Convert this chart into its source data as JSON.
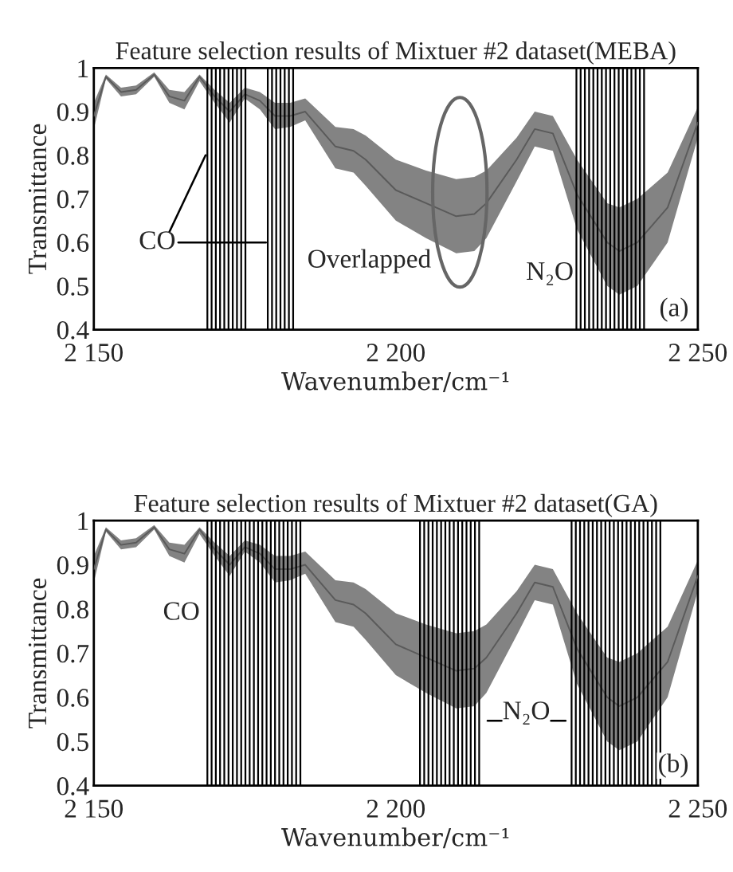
{
  "chart_data": [
    {
      "type": "line",
      "title": "Feature selection results of Mixtuer #2 dataset(MEBA)",
      "xlabel": "Wavenumber/cm⁻¹",
      "ylabel": "Transmittance",
      "xlim": [
        2150,
        2250
      ],
      "ylim": [
        0.4,
        1
      ],
      "xticks": [
        {
          "value": 2150,
          "label": "2 150"
        },
        {
          "value": 2200,
          "label": "2 200"
        },
        {
          "value": 2250,
          "label": "2 250"
        }
      ],
      "yticks": [
        0.4,
        0.5,
        0.6,
        0.7,
        0.8,
        0.9,
        1
      ],
      "series": [
        {
          "color": "#5a5a5a",
          "x": [
            2150,
            2152,
            2154.5,
            2157,
            2160,
            2162.5,
            2165,
            2167.5,
            2170,
            2172.5,
            2175,
            2177.5,
            2180,
            2182.5,
            2185,
            2190,
            2193,
            2195,
            2200,
            2205,
            2210,
            2213,
            2215,
            2220,
            2223,
            2226,
            2230,
            2235,
            2237,
            2240,
            2245,
            2250
          ],
          "values": [
            0.89,
            0.98,
            0.945,
            0.95,
            0.985,
            0.935,
            0.925,
            0.98,
            0.935,
            0.9,
            0.94,
            0.925,
            0.89,
            0.89,
            0.9,
            0.82,
            0.81,
            0.79,
            0.72,
            0.69,
            0.66,
            0.665,
            0.69,
            0.79,
            0.86,
            0.85,
            0.71,
            0.6,
            0.58,
            0.6,
            0.68,
            0.875
          ],
          "lower": [
            0.86,
            0.975,
            0.935,
            0.94,
            0.98,
            0.92,
            0.905,
            0.97,
            0.92,
            0.875,
            0.93,
            0.905,
            0.86,
            0.865,
            0.88,
            0.77,
            0.76,
            0.73,
            0.65,
            0.61,
            0.575,
            0.58,
            0.61,
            0.74,
            0.82,
            0.81,
            0.63,
            0.5,
            0.48,
            0.5,
            0.6,
            0.84
          ],
          "upper": [
            0.92,
            0.985,
            0.955,
            0.96,
            0.99,
            0.95,
            0.945,
            0.985,
            0.95,
            0.92,
            0.955,
            0.945,
            0.92,
            0.92,
            0.93,
            0.865,
            0.86,
            0.845,
            0.79,
            0.765,
            0.745,
            0.75,
            0.765,
            0.84,
            0.9,
            0.89,
            0.79,
            0.69,
            0.68,
            0.7,
            0.76,
            0.91
          ]
        }
      ],
      "ref_lines": [
        {
          "axis": "x",
          "value": 2168.8
        },
        {
          "axis": "x",
          "value": 2169.5
        },
        {
          "axis": "x",
          "value": 2170.2
        },
        {
          "axis": "x",
          "value": 2170.9
        },
        {
          "axis": "x",
          "value": 2171.6
        },
        {
          "axis": "x",
          "value": 2172.3
        },
        {
          "axis": "x",
          "value": 2173.0
        },
        {
          "axis": "x",
          "value": 2173.7
        },
        {
          "axis": "x",
          "value": 2174.4
        },
        {
          "axis": "x",
          "value": 2175.1
        },
        {
          "axis": "x",
          "value": 2178.8
        },
        {
          "axis": "x",
          "value": 2179.5
        },
        {
          "axis": "x",
          "value": 2180.2
        },
        {
          "axis": "x",
          "value": 2180.9
        },
        {
          "axis": "x",
          "value": 2181.6
        },
        {
          "axis": "x",
          "value": 2182.3
        },
        {
          "axis": "x",
          "value": 2183.0
        },
        {
          "axis": "x",
          "value": 2229.9
        },
        {
          "axis": "x",
          "value": 2230.6
        },
        {
          "axis": "x",
          "value": 2231.3
        },
        {
          "axis": "x",
          "value": 2232.0
        },
        {
          "axis": "x",
          "value": 2232.7
        },
        {
          "axis": "x",
          "value": 2233.4
        },
        {
          "axis": "x",
          "value": 2234.1
        },
        {
          "axis": "x",
          "value": 2234.8
        },
        {
          "axis": "x",
          "value": 2235.5
        },
        {
          "axis": "x",
          "value": 2236.2
        },
        {
          "axis": "x",
          "value": 2236.9
        },
        {
          "axis": "x",
          "value": 2237.6
        },
        {
          "axis": "x",
          "value": 2238.3
        },
        {
          "axis": "x",
          "value": 2239.0
        },
        {
          "axis": "x",
          "value": 2239.7
        },
        {
          "axis": "x",
          "value": 2240.4
        },
        {
          "axis": "x",
          "value": 2241.1
        }
      ],
      "annotations": [
        {
          "text": "CO",
          "x": 2168.5,
          "y": 0.8
        },
        "Overlapped",
        "N₂O",
        "(a)"
      ]
    },
    {
      "type": "line",
      "title": "Feature selection results of Mixtuer #2 dataset(GA)",
      "xlabel": "Wavenumber/cm⁻¹",
      "ylabel": "Transmittance",
      "xlim": [
        2150,
        2250
      ],
      "ylim": [
        0.4,
        1
      ],
      "xticks": [
        {
          "value": 2150,
          "label": "2 150"
        },
        {
          "value": 2200,
          "label": "2 200"
        },
        {
          "value": 2250,
          "label": "2 250"
        }
      ],
      "yticks": [
        0.4,
        0.5,
        0.6,
        0.7,
        0.8,
        0.9,
        1
      ],
      "series": [
        {
          "color": "#5a5a5a",
          "x": [
            2150,
            2152,
            2154.5,
            2157,
            2160,
            2162.5,
            2165,
            2167.5,
            2170,
            2172.5,
            2175,
            2177.5,
            2180,
            2182.5,
            2185,
            2190,
            2193,
            2195,
            2200,
            2205,
            2210,
            2213,
            2215,
            2220,
            2223,
            2226,
            2230,
            2235,
            2237,
            2240,
            2245,
            2250
          ],
          "values": [
            0.89,
            0.98,
            0.945,
            0.95,
            0.985,
            0.935,
            0.925,
            0.98,
            0.935,
            0.9,
            0.94,
            0.925,
            0.89,
            0.89,
            0.9,
            0.82,
            0.81,
            0.79,
            0.72,
            0.69,
            0.66,
            0.665,
            0.69,
            0.79,
            0.86,
            0.85,
            0.71,
            0.6,
            0.58,
            0.6,
            0.68,
            0.875
          ],
          "lower": [
            0.86,
            0.975,
            0.935,
            0.94,
            0.98,
            0.92,
            0.905,
            0.97,
            0.92,
            0.875,
            0.93,
            0.905,
            0.86,
            0.865,
            0.88,
            0.77,
            0.76,
            0.73,
            0.65,
            0.61,
            0.575,
            0.58,
            0.61,
            0.74,
            0.82,
            0.81,
            0.63,
            0.5,
            0.48,
            0.5,
            0.6,
            0.84
          ],
          "upper": [
            0.92,
            0.985,
            0.955,
            0.96,
            0.99,
            0.95,
            0.945,
            0.985,
            0.95,
            0.92,
            0.955,
            0.945,
            0.92,
            0.92,
            0.93,
            0.865,
            0.86,
            0.845,
            0.79,
            0.765,
            0.745,
            0.75,
            0.765,
            0.84,
            0.9,
            0.89,
            0.79,
            0.69,
            0.68,
            0.7,
            0.76,
            0.91
          ]
        }
      ],
      "ref_lines": [
        {
          "axis": "x",
          "value": 2168.8
        },
        {
          "axis": "x",
          "value": 2169.5
        },
        {
          "axis": "x",
          "value": 2170.2
        },
        {
          "axis": "x",
          "value": 2170.9
        },
        {
          "axis": "x",
          "value": 2171.6
        },
        {
          "axis": "x",
          "value": 2172.3
        },
        {
          "axis": "x",
          "value": 2173.0
        },
        {
          "axis": "x",
          "value": 2173.7
        },
        {
          "axis": "x",
          "value": 2174.4
        },
        {
          "axis": "x",
          "value": 2175.1
        },
        {
          "axis": "x",
          "value": 2175.8
        },
        {
          "axis": "x",
          "value": 2176.5
        },
        {
          "axis": "x",
          "value": 2177.2
        },
        {
          "axis": "x",
          "value": 2177.9
        },
        {
          "axis": "x",
          "value": 2178.6
        },
        {
          "axis": "x",
          "value": 2179.3
        },
        {
          "axis": "x",
          "value": 2180.0
        },
        {
          "axis": "x",
          "value": 2180.7
        },
        {
          "axis": "x",
          "value": 2181.4
        },
        {
          "axis": "x",
          "value": 2182.1
        },
        {
          "axis": "x",
          "value": 2182.8
        },
        {
          "axis": "x",
          "value": 2183.5
        },
        {
          "axis": "x",
          "value": 2184.2
        },
        {
          "axis": "x",
          "value": 2204.0
        },
        {
          "axis": "x",
          "value": 2204.7
        },
        {
          "axis": "x",
          "value": 2205.4
        },
        {
          "axis": "x",
          "value": 2206.1
        },
        {
          "axis": "x",
          "value": 2206.8
        },
        {
          "axis": "x",
          "value": 2207.5
        },
        {
          "axis": "x",
          "value": 2208.2
        },
        {
          "axis": "x",
          "value": 2208.9
        },
        {
          "axis": "x",
          "value": 2209.6
        },
        {
          "axis": "x",
          "value": 2210.3
        },
        {
          "axis": "x",
          "value": 2211.0
        },
        {
          "axis": "x",
          "value": 2211.7
        },
        {
          "axis": "x",
          "value": 2212.4
        },
        {
          "axis": "x",
          "value": 2213.1
        },
        {
          "axis": "x",
          "value": 2213.8
        },
        {
          "axis": "x",
          "value": 2229.1
        },
        {
          "axis": "x",
          "value": 2229.8
        },
        {
          "axis": "x",
          "value": 2230.5
        },
        {
          "axis": "x",
          "value": 2231.2
        },
        {
          "axis": "x",
          "value": 2231.9
        },
        {
          "axis": "x",
          "value": 2232.6
        },
        {
          "axis": "x",
          "value": 2233.3
        },
        {
          "axis": "x",
          "value": 2234.0
        },
        {
          "axis": "x",
          "value": 2234.7
        },
        {
          "axis": "x",
          "value": 2235.4
        },
        {
          "axis": "x",
          "value": 2236.1
        },
        {
          "axis": "x",
          "value": 2236.8
        },
        {
          "axis": "x",
          "value": 2237.5
        },
        {
          "axis": "x",
          "value": 2238.2
        },
        {
          "axis": "x",
          "value": 2238.9
        },
        {
          "axis": "x",
          "value": 2239.6
        },
        {
          "axis": "x",
          "value": 2240.3
        },
        {
          "axis": "x",
          "value": 2241.0
        },
        {
          "axis": "x",
          "value": 2241.7
        },
        {
          "axis": "x",
          "value": 2242.4
        },
        {
          "axis": "x",
          "value": 2243.1
        },
        {
          "axis": "x",
          "value": 2243.8
        }
      ],
      "annotations": [
        "CO",
        "N₂O",
        "(b)"
      ]
    }
  ]
}
